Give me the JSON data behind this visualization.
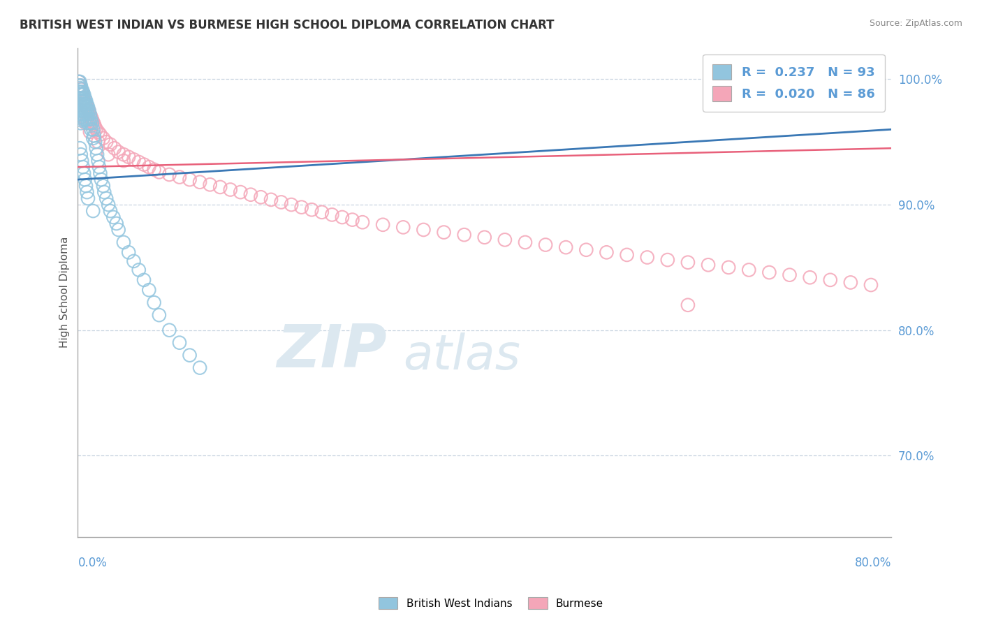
{
  "title": "BRITISH WEST INDIAN VS BURMESE HIGH SCHOOL DIPLOMA CORRELATION CHART",
  "source_text": "Source: ZipAtlas.com",
  "ylabel": "High School Diploma",
  "yaxis_labels": [
    "70.0%",
    "80.0%",
    "90.0%",
    "100.0%"
  ],
  "yaxis_values": [
    0.7,
    0.8,
    0.9,
    1.0
  ],
  "xlim": [
    0.0,
    0.8
  ],
  "ylim": [
    0.635,
    1.025
  ],
  "r_blue": 0.237,
  "n_blue": 93,
  "r_pink": 0.02,
  "n_pink": 86,
  "legend_label_blue": "British West Indians",
  "legend_label_pink": "Burmese",
  "blue_color": "#92c5de",
  "pink_color": "#f4a6b8",
  "blue_line_color": "#3a78b5",
  "pink_line_color": "#e8607a",
  "title_color": "#333333",
  "axis_label_color": "#5b9bd5",
  "watermark_text": "ZIPatlas",
  "watermark_color": "#dce8f0",
  "background_color": "#ffffff",
  "blue_scatter_x": [
    0.001,
    0.001,
    0.001,
    0.001,
    0.001,
    0.002,
    0.002,
    0.002,
    0.002,
    0.002,
    0.002,
    0.003,
    0.003,
    0.003,
    0.003,
    0.003,
    0.003,
    0.003,
    0.004,
    0.004,
    0.004,
    0.004,
    0.004,
    0.004,
    0.005,
    0.005,
    0.005,
    0.005,
    0.005,
    0.006,
    0.006,
    0.006,
    0.006,
    0.007,
    0.007,
    0.007,
    0.007,
    0.008,
    0.008,
    0.008,
    0.009,
    0.009,
    0.009,
    0.01,
    0.01,
    0.01,
    0.011,
    0.011,
    0.012,
    0.012,
    0.013,
    0.013,
    0.014,
    0.015,
    0.015,
    0.016,
    0.017,
    0.018,
    0.019,
    0.02,
    0.021,
    0.022,
    0.023,
    0.025,
    0.026,
    0.028,
    0.03,
    0.032,
    0.035,
    0.038,
    0.04,
    0.045,
    0.05,
    0.055,
    0.06,
    0.065,
    0.07,
    0.075,
    0.08,
    0.09,
    0.1,
    0.11,
    0.12,
    0.002,
    0.003,
    0.004,
    0.005,
    0.006,
    0.007,
    0.008,
    0.009,
    0.01,
    0.015
  ],
  "blue_scatter_y": [
    0.998,
    0.995,
    0.99,
    0.985,
    0.98,
    0.998,
    0.993,
    0.988,
    0.983,
    0.978,
    0.972,
    0.995,
    0.99,
    0.985,
    0.98,
    0.975,
    0.97,
    0.965,
    0.992,
    0.988,
    0.983,
    0.978,
    0.972,
    0.967,
    0.99,
    0.985,
    0.98,
    0.975,
    0.968,
    0.988,
    0.983,
    0.977,
    0.972,
    0.985,
    0.98,
    0.975,
    0.968,
    0.983,
    0.978,
    0.972,
    0.98,
    0.975,
    0.968,
    0.978,
    0.972,
    0.965,
    0.975,
    0.968,
    0.972,
    0.965,
    0.968,
    0.96,
    0.965,
    0.96,
    0.953,
    0.955,
    0.95,
    0.945,
    0.94,
    0.935,
    0.93,
    0.925,
    0.92,
    0.915,
    0.91,
    0.905,
    0.9,
    0.895,
    0.89,
    0.885,
    0.88,
    0.87,
    0.862,
    0.855,
    0.848,
    0.84,
    0.832,
    0.822,
    0.812,
    0.8,
    0.79,
    0.78,
    0.77,
    0.945,
    0.94,
    0.935,
    0.93,
    0.925,
    0.92,
    0.915,
    0.91,
    0.905,
    0.895
  ],
  "pink_scatter_x": [
    0.001,
    0.002,
    0.003,
    0.004,
    0.005,
    0.006,
    0.007,
    0.008,
    0.009,
    0.01,
    0.011,
    0.012,
    0.013,
    0.014,
    0.015,
    0.016,
    0.017,
    0.018,
    0.02,
    0.022,
    0.025,
    0.028,
    0.032,
    0.036,
    0.04,
    0.045,
    0.05,
    0.055,
    0.06,
    0.065,
    0.07,
    0.075,
    0.08,
    0.09,
    0.1,
    0.11,
    0.12,
    0.13,
    0.14,
    0.15,
    0.16,
    0.17,
    0.18,
    0.19,
    0.2,
    0.21,
    0.22,
    0.23,
    0.24,
    0.25,
    0.26,
    0.27,
    0.28,
    0.3,
    0.32,
    0.34,
    0.36,
    0.38,
    0.4,
    0.42,
    0.44,
    0.46,
    0.48,
    0.5,
    0.52,
    0.54,
    0.56,
    0.58,
    0.6,
    0.62,
    0.64,
    0.66,
    0.68,
    0.7,
    0.72,
    0.74,
    0.76,
    0.78,
    0.003,
    0.005,
    0.008,
    0.012,
    0.02,
    0.03,
    0.045,
    0.6
  ],
  "pink_scatter_y": [
    0.998,
    0.995,
    0.992,
    0.99,
    0.988,
    0.985,
    0.982,
    0.98,
    0.978,
    0.976,
    0.975,
    0.972,
    0.97,
    0.968,
    0.966,
    0.964,
    0.962,
    0.96,
    0.958,
    0.956,
    0.953,
    0.95,
    0.948,
    0.945,
    0.942,
    0.94,
    0.938,
    0.936,
    0.934,
    0.932,
    0.93,
    0.928,
    0.926,
    0.924,
    0.922,
    0.92,
    0.918,
    0.916,
    0.914,
    0.912,
    0.91,
    0.908,
    0.906,
    0.904,
    0.902,
    0.9,
    0.898,
    0.896,
    0.894,
    0.892,
    0.89,
    0.888,
    0.886,
    0.884,
    0.882,
    0.88,
    0.878,
    0.876,
    0.874,
    0.872,
    0.87,
    0.868,
    0.866,
    0.864,
    0.862,
    0.86,
    0.858,
    0.856,
    0.854,
    0.852,
    0.85,
    0.848,
    0.846,
    0.844,
    0.842,
    0.84,
    0.838,
    0.836,
    0.975,
    0.97,
    0.965,
    0.958,
    0.95,
    0.94,
    0.935,
    0.82
  ],
  "blue_trend_x": [
    0.0,
    0.8
  ],
  "blue_trend_y": [
    0.92,
    0.96
  ],
  "pink_trend_x": [
    0.0,
    0.8
  ],
  "pink_trend_y": [
    0.93,
    0.945
  ]
}
